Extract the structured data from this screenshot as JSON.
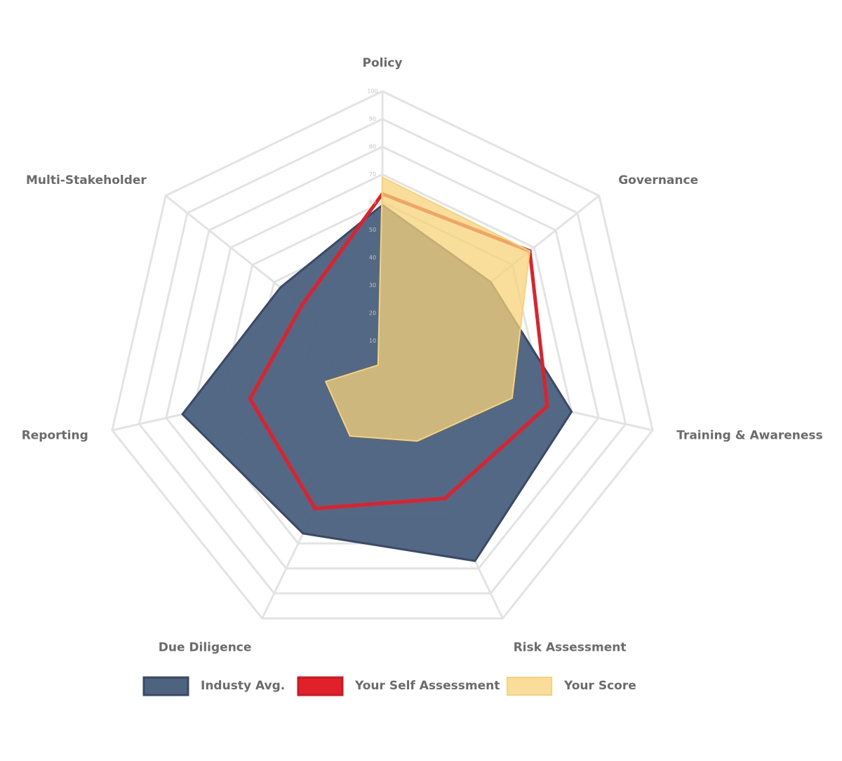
{
  "chart_data": {
    "type": "radar",
    "categories": [
      "Policy",
      "Governance",
      "Training & Awareness",
      "Risk Assessment",
      "Due Diligence",
      "Reporting",
      "Multi-Stakeholder"
    ],
    "series": [
      {
        "name": "Industy Avg.",
        "color": "#4d6380",
        "values": [
          59,
          50,
          70,
          77,
          66,
          74,
          47
        ]
      },
      {
        "name": "Your Self Assessment",
        "color": "#e0202a",
        "values": [
          63,
          68,
          61,
          52,
          56,
          49,
          37
        ]
      },
      {
        "name": "Your Score",
        "color": "#f7d27a",
        "values": [
          69,
          68,
          48,
          29,
          27,
          21,
          2
        ]
      }
    ],
    "rlim": [
      0,
      100
    ],
    "rticks": [
      10,
      20,
      30,
      40,
      50,
      60,
      70,
      80,
      90,
      100
    ],
    "grid": true,
    "legend": "bottom"
  }
}
